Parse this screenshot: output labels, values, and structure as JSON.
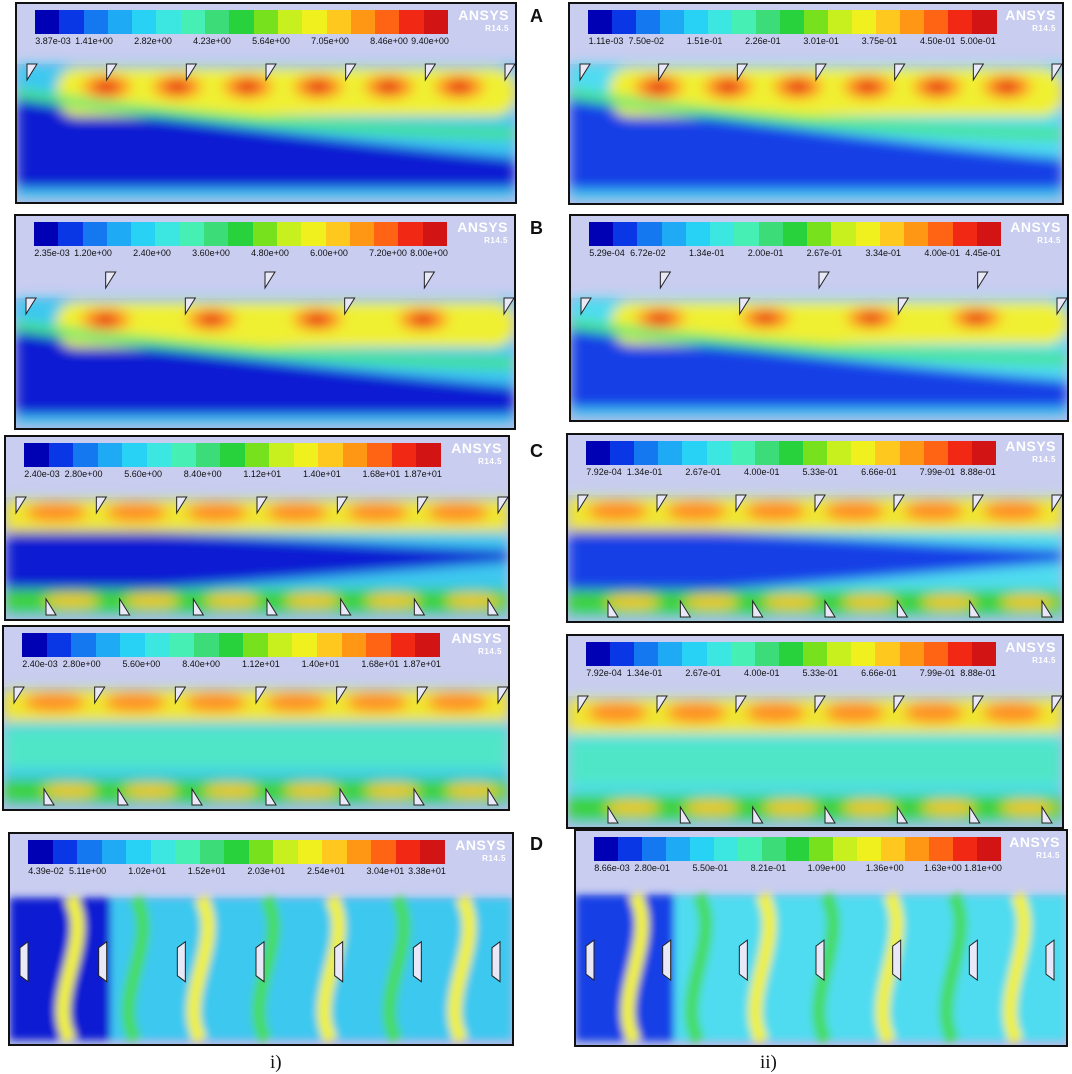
{
  "brand": {
    "name": "ANSYS",
    "version": "R14.5"
  },
  "captions": {
    "left": "i)",
    "right": "ii)"
  },
  "rows": [
    {
      "label": "A",
      "left": {
        "ticks": [
          "3.87e-03",
          "1.41e+00",
          "2.82e+00",
          "4.23e+00",
          "5.64e+00",
          "7.05e+00",
          "8.46e+00",
          "9.40e+00"
        ]
      },
      "right": {
        "ticks": [
          "1.11e-03",
          "7.50e-02",
          "1.51e-01",
          "2.26e-01",
          "3.01e-01",
          "3.75e-01",
          "4.50e-01",
          "5.00e-01"
        ]
      }
    },
    {
      "label": "B",
      "left": {
        "ticks": [
          "2.35e-03",
          "1.20e+00",
          "2.40e+00",
          "3.60e+00",
          "4.80e+00",
          "6.00e+00",
          "7.20e+00",
          "8.00e+00"
        ]
      },
      "right": {
        "ticks": [
          "5.29e-04",
          "6.72e-02",
          "1.34e-01",
          "2.00e-01",
          "2.67e-01",
          "3.34e-01",
          "4.00e-01",
          "4.45e-01"
        ]
      }
    },
    {
      "label": "C",
      "left": {
        "ticks": [
          "2.40e-03",
          "2.80e+00",
          "5.60e+00",
          "8.40e+00",
          "1.12e+01",
          "1.40e+01",
          "1.68e+01",
          "1.87e+01"
        ]
      },
      "right": {
        "ticks": [
          "7.92e-04",
          "1.34e-01",
          "2.67e-01",
          "4.00e-01",
          "5.33e-01",
          "6.66e-01",
          "7.99e-01",
          "8.88e-01"
        ]
      }
    },
    {
      "label": "",
      "left": {
        "ticks": [
          "2.40e-03",
          "2.80e+00",
          "5.60e+00",
          "8.40e+00",
          "1.12e+01",
          "1.40e+01",
          "1.68e+01",
          "1.87e+01"
        ]
      },
      "right": {
        "ticks": [
          "7.92e-04",
          "1.34e-01",
          "2.67e-01",
          "4.00e-01",
          "5.33e-01",
          "6.66e-01",
          "7.99e-01",
          "8.88e-01"
        ]
      }
    },
    {
      "label": "D",
      "left": {
        "ticks": [
          "4.39e-02",
          "5.11e+00",
          "1.02e+01",
          "1.52e+01",
          "2.03e+01",
          "2.54e+01",
          "3.04e+01",
          "3.38e+01"
        ]
      },
      "right": {
        "ticks": [
          "8.66e-03",
          "2.80e-01",
          "5.50e-01",
          "8.21e-01",
          "1.09e+00",
          "1.36e+00",
          "1.63e+00",
          "1.81e+00"
        ]
      }
    }
  ],
  "colormap": [
    "#0000b4",
    "#0a37e6",
    "#1478f0",
    "#1eaaf5",
    "#28d2f5",
    "#3ce6e1",
    "#46f0b4",
    "#3cdc78",
    "#28d23c",
    "#78e11e",
    "#c8f01e",
    "#f0f01e",
    "#ffc81e",
    "#ff9614",
    "#ff6414",
    "#f02814",
    "#d21414"
  ]
}
